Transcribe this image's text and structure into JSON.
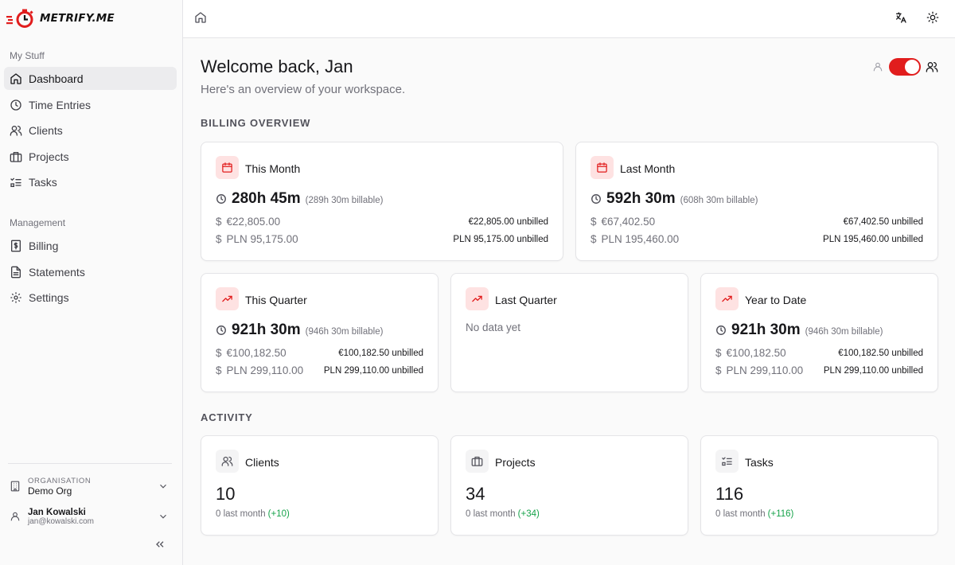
{
  "app": {
    "logo_text": "METRIFY.ME",
    "accent_color": "#e11d1d"
  },
  "sidebar": {
    "my_stuff_label": "My Stuff",
    "my_stuff": [
      {
        "label": "Dashboard",
        "icon": "home-icon",
        "active": true
      },
      {
        "label": "Time Entries",
        "icon": "clock-icon"
      },
      {
        "label": "Clients",
        "icon": "users-icon"
      },
      {
        "label": "Projects",
        "icon": "briefcase-icon"
      },
      {
        "label": "Tasks",
        "icon": "list-checks-icon"
      }
    ],
    "management_label": "Management",
    "management": [
      {
        "label": "Billing",
        "icon": "receipt-icon"
      },
      {
        "label": "Statements",
        "icon": "file-text-icon"
      },
      {
        "label": "Settings",
        "icon": "gear-icon"
      }
    ],
    "organisation": {
      "label": "ORGANISATION",
      "name": "Demo Org"
    },
    "user": {
      "name": "Jan Kowalski",
      "email": "jan@kowalski.com"
    }
  },
  "main": {
    "title": "Welcome back, Jan",
    "subtitle": "Here's an overview of your workspace.",
    "billing_heading": "BILLING OVERVIEW",
    "activity_heading": "ACTIVITY",
    "view_toggle_on": true,
    "billing": [
      {
        "title": "This Month",
        "icon": "calendar-icon",
        "hours": "280h 45m",
        "billable": "(289h 30m billable)",
        "eur": "€22,805.00",
        "eur_unbilled": "€22,805.00 unbilled",
        "pln": "PLN 95,175.00",
        "pln_unbilled": "PLN 95,175.00 unbilled"
      },
      {
        "title": "Last Month",
        "icon": "calendar-icon",
        "hours": "592h 30m",
        "billable": "(608h 30m billable)",
        "eur": "€67,402.50",
        "eur_unbilled": "€67,402.50 unbilled",
        "pln": "PLN 195,460.00",
        "pln_unbilled": "PLN 195,460.00 unbilled"
      },
      {
        "title": "This Quarter",
        "icon": "trending-up-icon",
        "hours": "921h 30m",
        "billable": "(946h 30m billable)",
        "eur": "€100,182.50",
        "eur_unbilled": "€100,182.50 unbilled",
        "pln": "PLN 299,110.00",
        "pln_unbilled": "PLN 299,110.00 unbilled"
      },
      {
        "title": "Last Quarter",
        "icon": "trending-up-icon",
        "empty_text": "No data yet"
      },
      {
        "title": "Year to Date",
        "icon": "trending-up-icon",
        "hours": "921h 30m",
        "billable": "(946h 30m billable)",
        "eur": "€100,182.50",
        "eur_unbilled": "€100,182.50 unbilled",
        "pln": "PLN 299,110.00",
        "pln_unbilled": "PLN 299,110.00 unbilled"
      }
    ],
    "currency_symbol": "$",
    "activity": [
      {
        "title": "Clients",
        "icon": "users-icon",
        "count": "10",
        "last_month": "0 last month",
        "delta": "(+10)"
      },
      {
        "title": "Projects",
        "icon": "briefcase-icon",
        "count": "34",
        "last_month": "0 last month",
        "delta": "(+34)"
      },
      {
        "title": "Tasks",
        "icon": "list-checks-icon",
        "count": "116",
        "last_month": "0 last month",
        "delta": "(+116)"
      }
    ]
  }
}
